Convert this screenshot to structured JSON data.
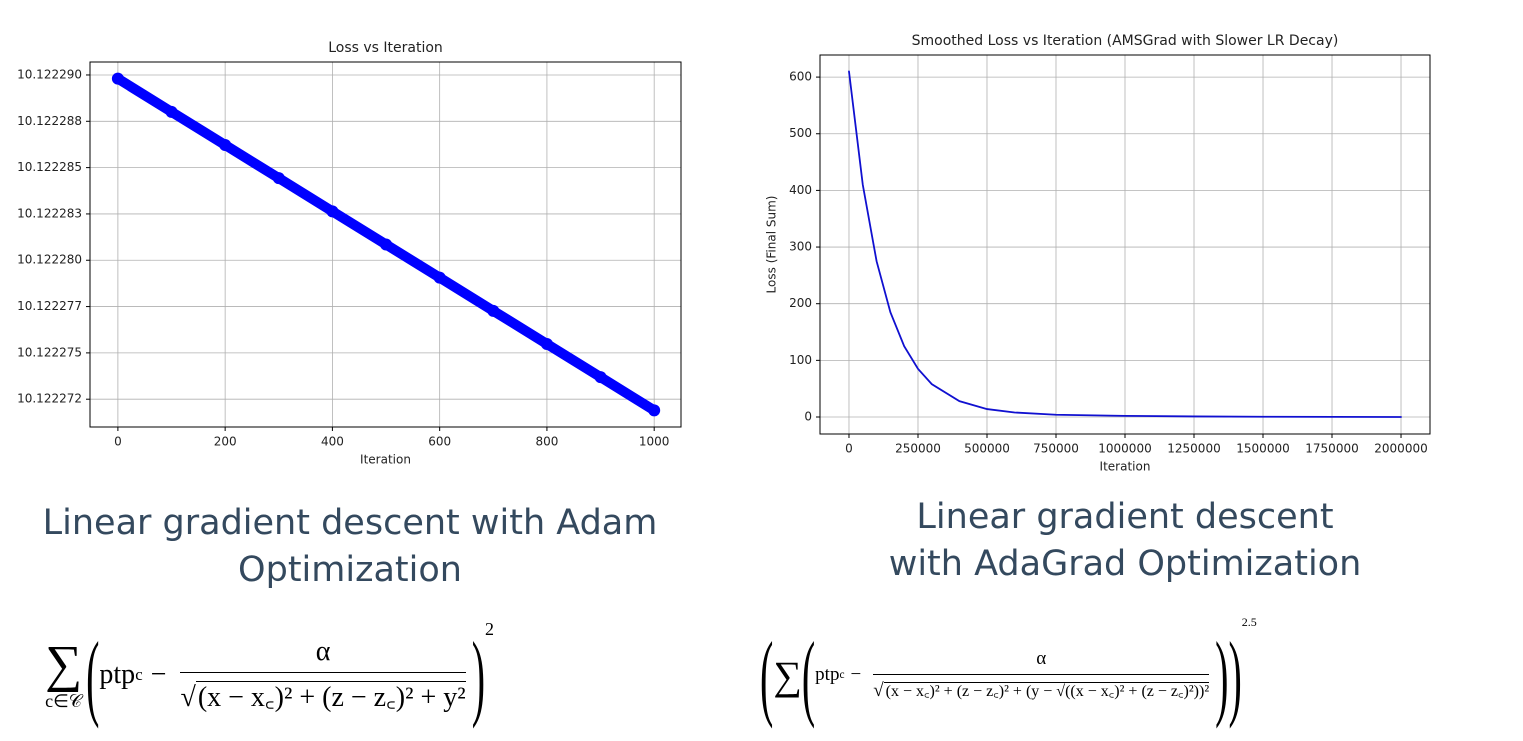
{
  "chart_data": [
    {
      "type": "line",
      "title": "Loss vs Iteration",
      "x_label": "Iteration",
      "x": [
        0,
        100,
        200,
        300,
        400,
        500,
        600,
        700,
        800,
        900,
        1000
      ],
      "series": [
        {
          "color": "#0000ff",
          "values": [
            10.1222898,
            10.12228801,
            10.12228622,
            10.12228443,
            10.12228264,
            10.12228085,
            10.12227906,
            10.12227727,
            10.12227548,
            10.12227369,
            10.1222719
          ]
        }
      ],
      "markers": true,
      "xlim": [
        -52,
        1050
      ],
      "xticks": [
        0,
        200,
        400,
        600,
        800,
        1000
      ],
      "ylim": [
        10.122271,
        10.1222907
      ],
      "yticks": [
        {
          "value": 10.12229,
          "label": "10.122290"
        },
        {
          "value": 10.1222875,
          "label": "10.122288"
        },
        {
          "value": 10.122285,
          "label": "10.122285"
        },
        {
          "value": 10.1222825,
          "label": "10.122283"
        },
        {
          "value": 10.12228,
          "label": "10.122280"
        },
        {
          "value": 10.1222775,
          "label": "10.122277"
        },
        {
          "value": 10.122275,
          "label": "10.122275"
        },
        {
          "value": 10.1222725,
          "label": "10.122272"
        }
      ],
      "grid": true
    },
    {
      "type": "line",
      "title": "Smoothed Loss vs Iteration (AMSGrad with Slower LR Decay)",
      "x_label": "Iteration",
      "y_label": "Loss (Final Sum)",
      "x": [
        0,
        50000,
        100000,
        150000,
        200000,
        250000,
        300000,
        400000,
        500000,
        600000,
        750000,
        1000000,
        1250000,
        1500000,
        2000000
      ],
      "series": [
        {
          "color": "#1010d0",
          "values": [
            610,
            410,
            275,
            185,
            125,
            85,
            58,
            28,
            14,
            8,
            4,
            2,
            1,
            0.5,
            0
          ]
        }
      ],
      "markers": false,
      "xlim": [
        -105000,
        2105000
      ],
      "xticks": [
        0,
        250000,
        500000,
        750000,
        1000000,
        1250000,
        1500000,
        1750000,
        2000000
      ],
      "ylim": [
        -30,
        639
      ],
      "yticks": [
        0,
        100,
        200,
        300,
        400,
        500,
        600
      ],
      "grid": true
    }
  ],
  "captions": [
    [
      "Linear gradient descent with Adam",
      "Optimization"
    ],
    [
      "Linear gradient descent",
      "with AdaGrad Optimization"
    ]
  ],
  "formulas": [
    {
      "sum_sub": "c∈𝒞",
      "term": "ptp",
      "term_sub": "c",
      "minus": "−",
      "numerator": "α",
      "denominator": "(x − x꜀)² + (z − z꜀)² + y²",
      "exponent": "2"
    },
    {
      "term": "ptp",
      "term_sub": "c",
      "minus": "−",
      "numerator": "α",
      "denominator": "(x − x꜀)² + (z − z꜀)² + (y − √((x − x꜀)² + (z − z꜀)²))²",
      "exponent": "2.5"
    }
  ]
}
